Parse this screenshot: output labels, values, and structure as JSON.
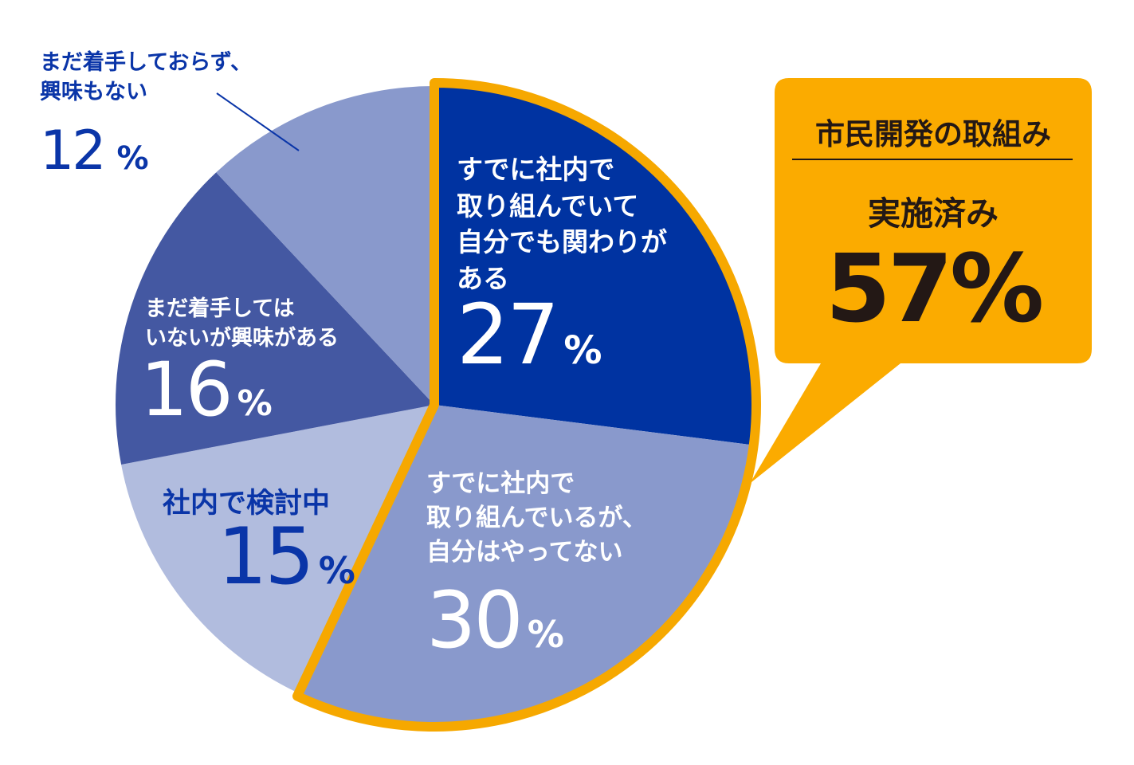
{
  "chart_data": {
    "type": "pie",
    "slices": [
      {
        "label": "すでに社内で\n取り組んでいて\n自分でも関わりが\nある",
        "value": 27,
        "unit": "%",
        "color": "#0033a1"
      },
      {
        "label": "すでに社内で\n取り組んでいるが、\n自分はやってない",
        "value": 30,
        "unit": "%",
        "color": "#8999cc"
      },
      {
        "label": "社内で検討中",
        "value": 15,
        "unit": "%",
        "color": "#b1bcde"
      },
      {
        "label": "まだ着手しては\nいないが興味がある",
        "value": 16,
        "unit": "%",
        "color": "#4458a2"
      },
      {
        "label": "まだ着手しておらず、\n興味もない",
        "value": 12,
        "unit": "%",
        "color": "#8999cc"
      }
    ],
    "start": "top, clockwise",
    "highlight": {
      "slices": [
        0,
        1
      ],
      "outline_color": "#f6a800",
      "title": "市民開発の取組み",
      "subtitle": "実施済み",
      "value": "57%"
    }
  },
  "colors": {
    "accent": "#f6a800",
    "callout_bg": "#fbab00",
    "dark_text": "#231815",
    "blue_text": "#0a35a8",
    "leader_line": "#0a35a8"
  }
}
